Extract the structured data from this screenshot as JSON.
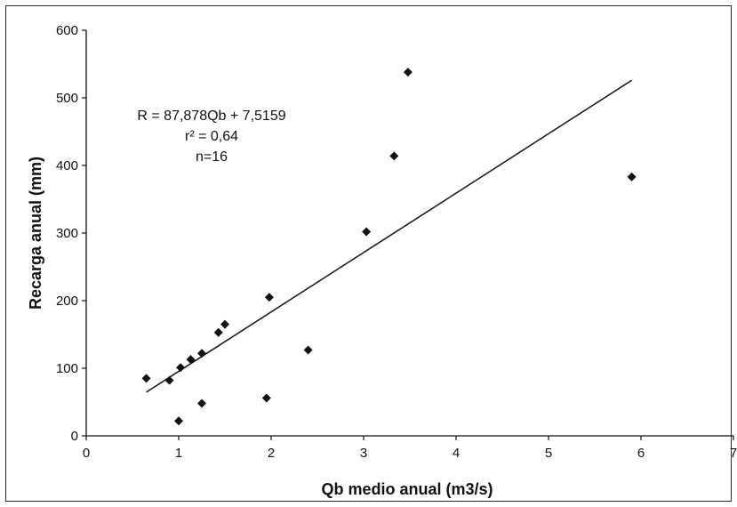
{
  "chart_data": {
    "type": "scatter",
    "title": "",
    "xlabel": "Qb medio anual (m3/s)",
    "ylabel": "Recarga anual (mm)",
    "xlim": [
      0,
      7
    ],
    "ylim": [
      0,
      600
    ],
    "xticks": [
      0,
      1,
      2,
      3,
      4,
      5,
      6,
      7
    ],
    "yticks": [
      0,
      100,
      200,
      300,
      400,
      500,
      600
    ],
    "grid": false,
    "legend": "none",
    "marker": "diamond",
    "marker_color": "#111111",
    "line_color": "#111111",
    "series": [
      {
        "points": [
          {
            "x": 0.65,
            "y": 85
          },
          {
            "x": 0.9,
            "y": 82
          },
          {
            "x": 1.0,
            "y": 22
          },
          {
            "x": 1.02,
            "y": 101
          },
          {
            "x": 1.13,
            "y": 113
          },
          {
            "x": 1.25,
            "y": 122
          },
          {
            "x": 1.25,
            "y": 48
          },
          {
            "x": 1.43,
            "y": 153
          },
          {
            "x": 1.5,
            "y": 165
          },
          {
            "x": 1.95,
            "y": 56
          },
          {
            "x": 1.98,
            "y": 205
          },
          {
            "x": 2.4,
            "y": 127
          },
          {
            "x": 3.03,
            "y": 302
          },
          {
            "x": 3.33,
            "y": 414
          },
          {
            "x": 3.48,
            "y": 538
          },
          {
            "x": 5.9,
            "y": 383
          }
        ]
      }
    ],
    "trendline": {
      "type": "linear",
      "slope": 87.878,
      "intercept": 7.5159,
      "x_range": [
        0.65,
        5.9
      ]
    },
    "annotations": {
      "equation": "R = 87,878Qb + 7,5159",
      "r2": "r² = 0,64",
      "n": "n=16"
    }
  }
}
